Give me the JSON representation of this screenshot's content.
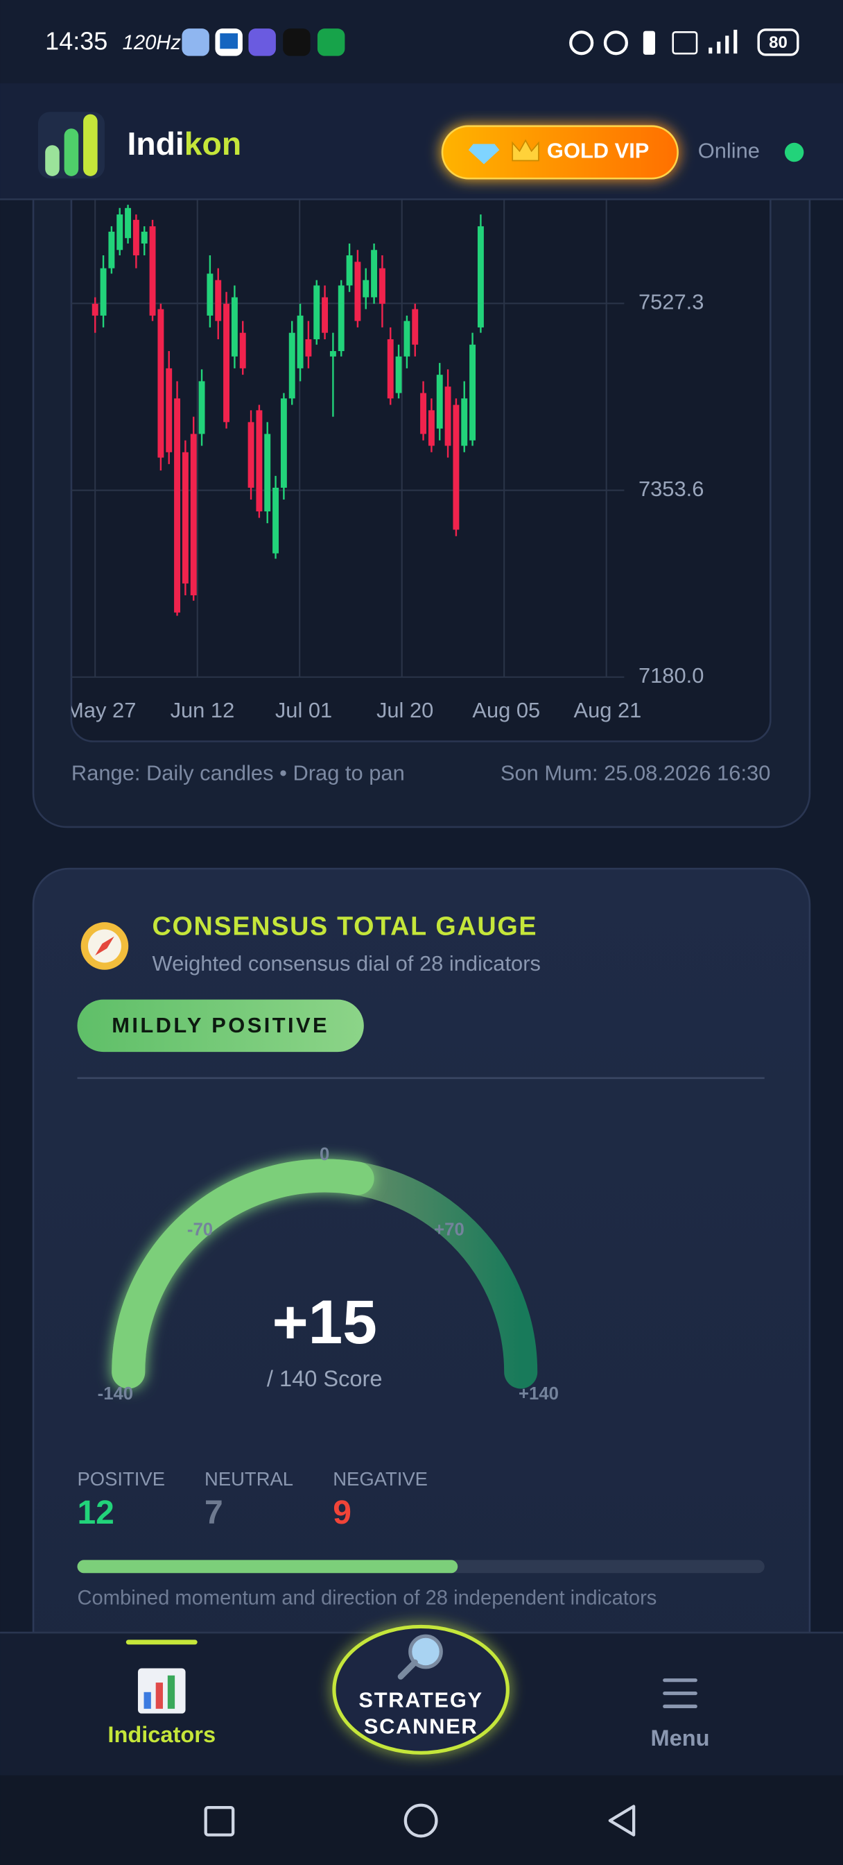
{
  "status_bar": {
    "time": "14:35",
    "refresh": "120Hz",
    "battery": "80"
  },
  "header": {
    "brand_a": "Indi",
    "brand_b": "kon",
    "vip": "GOLD VIP",
    "status": "Online"
  },
  "price_chart": {
    "type": "candlestick",
    "up_color": "#22d37a",
    "down_color": "#f0234d",
    "grid": true,
    "ylim": [
      7180,
      7700
    ],
    "yticks": [
      {
        "value": 7180,
        "label": "7180.0"
      },
      7353.6,
      7527.3
    ],
    "xticks": [
      "May 27",
      "Jun 12",
      "Jul 01",
      "Jul 20",
      "Aug 05",
      "Aug 21"
    ],
    "candles": [
      [
        7527,
        7533,
        7500,
        7516
      ],
      [
        7516,
        7572,
        7505,
        7560
      ],
      [
        7560,
        7599,
        7555,
        7594
      ],
      [
        7577,
        7616,
        7572,
        7610
      ],
      [
        7588,
        7619,
        7583,
        7616
      ],
      [
        7605,
        7610,
        7560,
        7572
      ],
      [
        7583,
        7599,
        7572,
        7594
      ],
      [
        7599,
        7605,
        7511,
        7516
      ],
      [
        7522,
        7527,
        7372,
        7384
      ],
      [
        7467,
        7483,
        7378,
        7389
      ],
      [
        7439,
        7455,
        7237,
        7240
      ],
      [
        7389,
        7400,
        7256,
        7267
      ],
      [
        7406,
        7422,
        7251,
        7256
      ],
      [
        7406,
        7466,
        7395,
        7455
      ],
      [
        7516,
        7572,
        7505,
        7555
      ],
      [
        7549,
        7560,
        7494,
        7511
      ],
      [
        7527,
        7538,
        7411,
        7417
      ],
      [
        7478,
        7544,
        7467,
        7533
      ],
      [
        7500,
        7511,
        7461,
        7467
      ],
      [
        7417,
        7428,
        7345,
        7356
      ],
      [
        7428,
        7433,
        7328,
        7334
      ],
      [
        7334,
        7417,
        7323,
        7406
      ],
      [
        7295,
        7367,
        7290,
        7356
      ],
      [
        7356,
        7444,
        7345,
        7439
      ],
      [
        7439,
        7511,
        7433,
        7500
      ],
      [
        7467,
        7527,
        7455,
        7516
      ],
      [
        7494,
        7511,
        7467,
        7478
      ],
      [
        7494,
        7549,
        7489,
        7544
      ],
      [
        7533,
        7544,
        7494,
        7500
      ],
      [
        7478,
        7500,
        7422,
        7483
      ],
      [
        7483,
        7549,
        7478,
        7544
      ],
      [
        7544,
        7583,
        7538,
        7572
      ],
      [
        7566,
        7577,
        7505,
        7511
      ],
      [
        7533,
        7560,
        7522,
        7549
      ],
      [
        7533,
        7583,
        7527,
        7577
      ],
      [
        7560,
        7572,
        7505,
        7527
      ],
      [
        7494,
        7505,
        7433,
        7439
      ],
      [
        7444,
        7489,
        7439,
        7478
      ],
      [
        7478,
        7516,
        7467,
        7511
      ],
      [
        7522,
        7527,
        7478,
        7489
      ],
      [
        7444,
        7455,
        7400,
        7406
      ],
      [
        7428,
        7439,
        7389,
        7395
      ],
      [
        7411,
        7472,
        7400,
        7461
      ],
      [
        7450,
        7466,
        7384,
        7395
      ],
      [
        7433,
        7439,
        7311,
        7317
      ],
      [
        7395,
        7455,
        7389,
        7439
      ],
      [
        7400,
        7500,
        7395,
        7489
      ],
      [
        7505,
        7610,
        7500,
        7599
      ]
    ],
    "range_note": "Range: Daily candles • Drag to pan",
    "timestamp": "Son Mum: 25.08.2026 16:30"
  },
  "gauge": {
    "type": "gauge",
    "title": "CONSENSUS TOTAL GAUGE",
    "subtitle": "Weighted consensus dial of 28 indicators",
    "badge": "MILDLY POSITIVE",
    "value": 15,
    "value_label": "+15",
    "lim": [
      -140,
      140
    ],
    "ticks": [
      -140,
      -70,
      0,
      {
        "value": 70,
        "label": "+70"
      },
      {
        "value": 140,
        "label": "+140"
      }
    ],
    "scale_note": "/ 140 Score",
    "color": "#7ccf7a",
    "stats": [
      {
        "name": "POSITIVE",
        "value": 12,
        "color": "#22d37a"
      },
      {
        "name": "NEUTRAL",
        "value": 7,
        "color": "#6e7a90"
      },
      {
        "name": "NEGATIVE",
        "value": 9,
        "color": "#f04438"
      }
    ],
    "footnote": "Combined momentum and direction of 28 independent indicators"
  },
  "nav": {
    "left": "Indicators",
    "center": [
      "STRATEGY",
      "SCANNER"
    ],
    "right": "Menu"
  }
}
